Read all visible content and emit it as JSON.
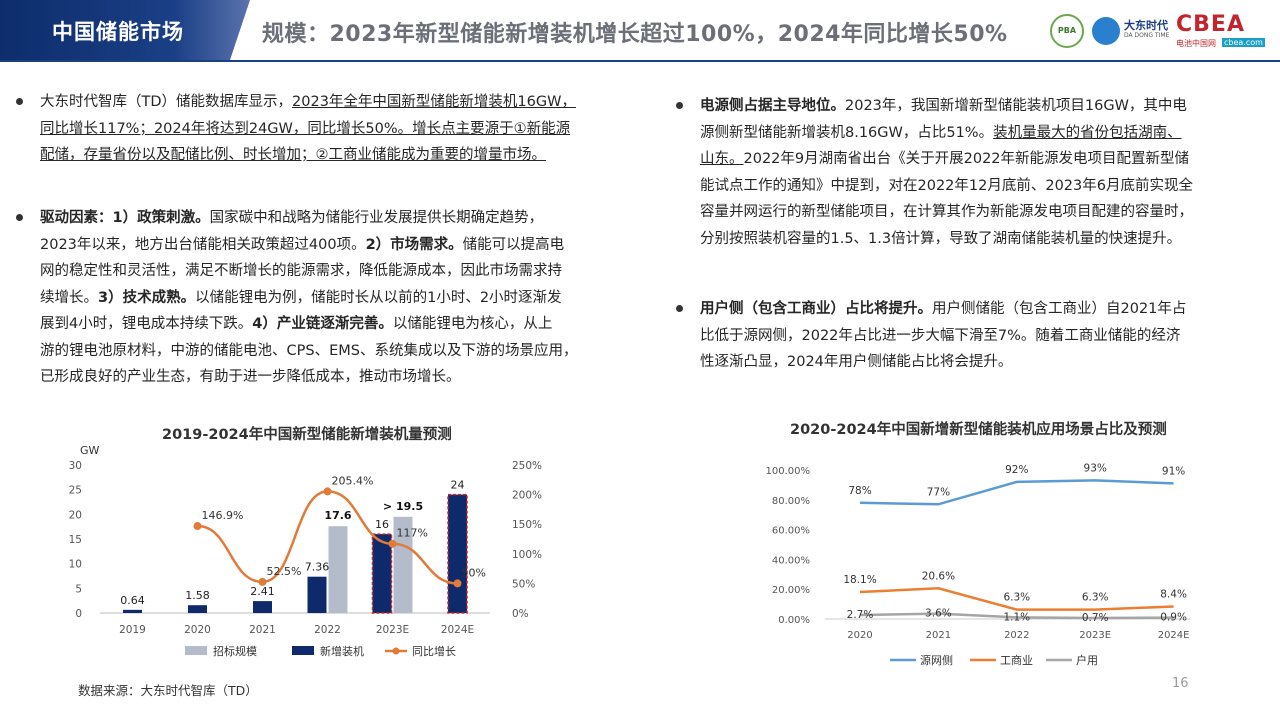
{
  "header": {
    "section_tag": "中国储能市场",
    "headline": "规模：2023年新型储能新增装机增长超过100%，2024年同比增长50%",
    "logos": {
      "logo1": "PBA",
      "logo2_cn": "大东时代",
      "logo2_en": "DA DONG TIME",
      "logo3": "CBEA",
      "logo3_sub": "电池中国网",
      "logo3_domain": "cbea.com"
    }
  },
  "left": {
    "p1": {
      "plain1": "大东时代智库（TD）储能数据库显示，",
      "u1": "2023年全年中国新型储能新增装机16GW，",
      "u2": "同比增长117%；2024年将达到24GW，同比增长50%。增长点主要源于①新能源",
      "u3": "配储，存量省份以及配储比例、时长增加；②工商业储能成为重要的增量市场。"
    },
    "p2": {
      "b1": "驱动因素：1）政策刺激。",
      "t1": "国家碳中和战略为储能行业发展提供长期确定趋势，",
      "t2": "2023年以来，地方出台储能相关政策超过400项。",
      "b2": "2）市场需求。",
      "t3": "储能可以提高电",
      "t4": "网的稳定性和灵活性，满足不断增长的能源需求，降低能源成本，因此市场需求持",
      "t5": "续增长。",
      "b3": "3）技术成熟。",
      "t6": "以储能锂电为例，储能时长从以前的1小时、2小时逐渐发",
      "t7": "展到4小时，锂电成本持续下跌。",
      "b4": "4）产业链逐渐完善。",
      "t8": "以储能锂电为核心，从上",
      "t9": "游的锂电池原材料，中游的储能电池、CPS、EMS、系统集成以及下游的场景应用，",
      "t10": "已形成良好的产业生态，有助于进一步降低成本，推动市场增长。"
    }
  },
  "right": {
    "p1": {
      "b1": "电源侧占据主导地位。",
      "t1": "2023年，我国新增新型储能装机项目16GW，其中电",
      "t2": "源侧新型储能新增装机8.16GW，占比51%。",
      "u1": "装机量最大的省份包括湖南、",
      "u2": "山东。",
      "t3": "2022年9月湖南省出台《关于开展2022年新能源发电项目配置新型储",
      "t4": "能试点工作的通知》中提到，对在2022年12月底前、2023年6月底前实现全",
      "t5": "容量并网运行的新型储能项目，在计算其作为新能源发电项目配建的容量时，",
      "t6": "分别按照装机容量的1.5、1.3倍计算，导致了湖南储能装机量的快速提升。"
    },
    "p2": {
      "b1": "用户侧（包含工商业）占比将提升。",
      "t1": "用户侧储能（包含工商业）自2021年占",
      "t2": "比低于源网侧，2022年占比进一步大幅下滑至7%。随着工商业储能的经济",
      "t3": "性逐渐凸显，2024年用户侧储能占比将会提升。"
    }
  },
  "chart_data": [
    {
      "type": "bar",
      "title": "2019-2024年中国新型储能新增装机量预测",
      "y_unit": "GW",
      "categories": [
        "2019",
        "2020",
        "2021",
        "2022",
        "2023E",
        "2024E"
      ],
      "ylim": [
        0,
        30
      ],
      "y_ticks": [
        "0",
        "5",
        "10",
        "15",
        "20",
        "25",
        "30"
      ],
      "y2lim": [
        0,
        250
      ],
      "y2_ticks": [
        "0%",
        "50%",
        "100%",
        "150%",
        "200%",
        "250%"
      ],
      "series": [
        {
          "name": "招标规模",
          "values": [
            null,
            null,
            null,
            17.6,
            19.5,
            null
          ],
          "labels": [
            "",
            "",
            "",
            "17.6",
            "> 19.5",
            ""
          ],
          "color": "#b4bccb"
        },
        {
          "name": "新增装机",
          "values": [
            0.64,
            1.58,
            2.41,
            7.36,
            16,
            24
          ],
          "labels": [
            "0.64",
            "1.58",
            "2.41",
            "7.36",
            "16",
            "24"
          ],
          "color": "#0e2a6b"
        },
        {
          "name": "同比增长",
          "values": [
            null,
            146.9,
            52.5,
            205.4,
            117,
            50
          ],
          "labels": [
            "",
            "146.9%",
            "52.5%",
            "205.4%",
            "117%",
            "50%"
          ],
          "color": "#e07b39",
          "axis": "right"
        }
      ],
      "highlight_color": "#c0262d",
      "grid": false,
      "legend": "bottom"
    },
    {
      "type": "line",
      "title": "2020-2024年中国新增新型储能装机应用场景占比及预测",
      "categories": [
        "2020",
        "2021",
        "2022",
        "2023E",
        "2024E"
      ],
      "ylim": [
        0,
        100
      ],
      "y_ticks": [
        "0.00%",
        "20.00%",
        "40.00%",
        "60.00%",
        "80.00%",
        "100.00%"
      ],
      "series": [
        {
          "name": "源网侧",
          "values": [
            78,
            77,
            92,
            93,
            91
          ],
          "labels": [
            "78%",
            "77%",
            "92%",
            "93%",
            "91%"
          ],
          "color": "#5b9bd5"
        },
        {
          "name": "工商业",
          "values": [
            18.1,
            20.6,
            6.3,
            6.3,
            8.4
          ],
          "labels": [
            "18.1%",
            "20.6%",
            "6.3%",
            "6.3%",
            "8.4%"
          ],
          "color": "#ed7d31"
        },
        {
          "name": "户用",
          "values": [
            2.7,
            3.6,
            1.1,
            0.7,
            0.9
          ],
          "labels": [
            "2.7%",
            "3.6%",
            "1.1%",
            "0.7%",
            "0.9%"
          ],
          "color": "#a5a5a5"
        }
      ],
      "grid": false,
      "legend": "bottom"
    }
  ],
  "footer": {
    "source": "数据来源：大东时代智库（TD）",
    "page": "16"
  }
}
